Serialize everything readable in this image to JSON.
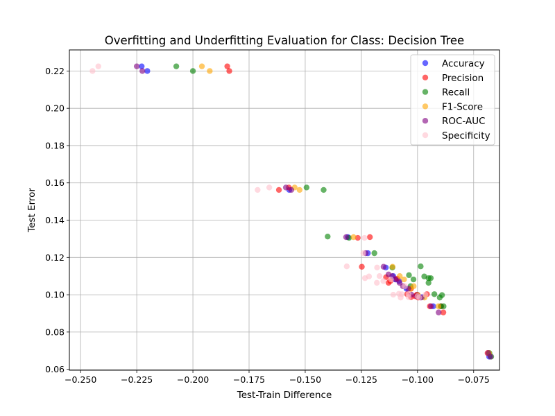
{
  "chart_data": {
    "type": "scatter",
    "title": "Overfitting and Underfitting Evaluation for Class: Decision Tree",
    "xlabel": "Test-Train Difference",
    "ylabel": "Test Error",
    "xlim": [
      -0.255,
      -0.0635
    ],
    "ylim": [
      0.0595,
      0.2313
    ],
    "xticks": [
      -0.25,
      -0.225,
      -0.2,
      -0.175,
      -0.15,
      -0.125,
      -0.1,
      -0.075
    ],
    "xtick_labels": [
      "−0.250",
      "−0.225",
      "−0.200",
      "−0.175",
      "−0.150",
      "−0.125",
      "−0.100",
      "−0.075"
    ],
    "yticks": [
      0.06,
      0.08,
      0.1,
      0.12,
      0.14,
      0.16,
      0.18,
      0.2,
      0.22
    ],
    "ytick_labels": [
      "0.06",
      "0.08",
      "0.10",
      "0.12",
      "0.14",
      "0.16",
      "0.18",
      "0.20",
      "0.22"
    ],
    "grid": true,
    "legend_position": "top-right",
    "series": [
      {
        "name": "Accuracy",
        "color": "#0000ff",
        "x": [
          -0.2228,
          -0.2203,
          -0.1571,
          -0.131,
          -0.1221,
          -0.1141,
          -0.1108,
          -0.1099,
          -0.1082,
          -0.1049,
          -0.1001,
          -0.0978,
          -0.093,
          -0.0681
        ],
        "y": [
          0.2225,
          0.22,
          0.1562,
          0.1309,
          0.1223,
          0.1146,
          0.11,
          0.1082,
          0.1073,
          0.1032,
          0.1,
          0.0987,
          0.0938,
          0.0668
        ]
      },
      {
        "name": "Precision",
        "color": "#ff0000",
        "x": [
          -0.1847,
          -0.1838,
          -0.1617,
          -0.1573,
          -0.1266,
          -0.1212,
          -0.1248,
          -0.114,
          -0.1129,
          -0.1121,
          -0.1091,
          -0.1046,
          -0.1029,
          -0.101,
          -0.1029,
          -0.1003,
          -0.0997,
          -0.0958,
          -0.0945,
          -0.0895,
          -0.0885,
          -0.0688
        ],
        "y": [
          0.2225,
          0.22,
          0.1562,
          0.1575,
          0.1305,
          0.1309,
          0.115,
          0.1094,
          0.1064,
          0.1073,
          0.1086,
          0.1003,
          0.1032,
          0.0992,
          0.0987,
          0.1,
          0.0985,
          0.1003,
          0.0938,
          0.0938,
          0.0905,
          0.0687
        ]
      },
      {
        "name": "Recall",
        "color": "#008000",
        "x": [
          -0.2074,
          -0.2,
          -0.1494,
          -0.1418,
          -0.14,
          -0.1305,
          -0.1192,
          -0.1112,
          -0.1038,
          -0.1018,
          -0.1031,
          -0.0986,
          -0.097,
          -0.0951,
          -0.0941,
          -0.0951,
          -0.0925,
          -0.0901,
          -0.0891,
          -0.0884,
          -0.0896,
          -0.068,
          -0.0672
        ],
        "y": [
          0.2225,
          0.22,
          0.1575,
          0.1562,
          0.1312,
          0.1305,
          0.1223,
          0.1146,
          0.1105,
          0.1082,
          0.1046,
          0.1152,
          0.1098,
          0.1089,
          0.1089,
          0.1064,
          0.1003,
          0.0985,
          0.0998,
          0.0938,
          0.0938,
          0.0687,
          0.0668
        ]
      },
      {
        "name": "F1-Score",
        "color": "#ffa500",
        "x": [
          -0.196,
          -0.1925,
          -0.1547,
          -0.1525,
          -0.1285,
          -0.1111,
          -0.1079,
          -0.106,
          -0.1017,
          -0.1031,
          -0.0998,
          -0.0969,
          -0.0907,
          -0.0682
        ],
        "y": [
          0.2225,
          0.22,
          0.1575,
          0.1562,
          0.1309,
          0.115,
          0.11,
          0.1082,
          0.1046,
          0.1032,
          0.0998,
          0.0985,
          0.0938,
          0.0687
        ]
      },
      {
        "name": "ROC-AUC",
        "color": "#800080",
        "x": [
          -0.225,
          -0.2225,
          -0.1586,
          -0.1562,
          -0.1318,
          -0.1231,
          -0.1151,
          -0.1129,
          -0.1113,
          -0.1097,
          -0.108,
          -0.1065,
          -0.1041,
          -0.1027,
          -0.1003,
          -0.0985,
          -0.094,
          -0.0906,
          -0.0685,
          -0.0675
        ],
        "y": [
          0.2225,
          0.22,
          0.1575,
          0.1562,
          0.1309,
          0.1223,
          0.115,
          0.1109,
          0.11,
          0.1082,
          0.1064,
          0.1046,
          0.1032,
          0.1,
          0.0992,
          0.0985,
          0.0938,
          0.0905,
          0.0687,
          0.0668
        ]
      },
      {
        "name": "Specificity",
        "color": "#ffc0cb",
        "x": [
          -0.2447,
          -0.2421,
          -0.1712,
          -0.166,
          -0.1315,
          -0.1241,
          -0.1236,
          -0.1234,
          -0.1216,
          -0.1181,
          -0.118,
          -0.1169,
          -0.1152,
          -0.1118,
          -0.1108,
          -0.1083,
          -0.107,
          -0.1075,
          -0.104,
          -0.1,
          -0.0992,
          -0.1056,
          -0.104,
          -0.0965
        ],
        "y": [
          0.22,
          0.2225,
          0.1562,
          0.1575,
          0.1152,
          0.1223,
          0.1305,
          0.1089,
          0.1098,
          0.1064,
          0.1146,
          0.11,
          0.1073,
          0.1082,
          0.1,
          0.1005,
          0.1003,
          0.0985,
          0.1003,
          0.0992,
          0.0985,
          0.1046,
          0.0987,
          0.1
        ]
      }
    ]
  }
}
